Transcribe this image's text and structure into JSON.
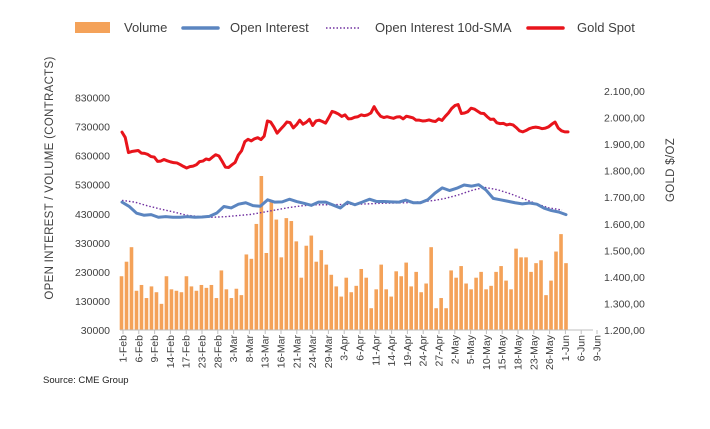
{
  "chart_data": {
    "type": "bar+line",
    "source": "Source: CME Group",
    "legend": [
      {
        "name": "Volume",
        "kind": "bar",
        "color": "#F4A259"
      },
      {
        "name": "Open Interest",
        "kind": "line",
        "color": "#5B85C0"
      },
      {
        "name": "Open Interest 10d-SMA",
        "kind": "dotted",
        "color": "#7030A0"
      },
      {
        "name": "Gold Spot",
        "kind": "line",
        "color": "#E8141B"
      }
    ],
    "ylabel": "OPEN INTEREST / VOLUME (CONTRACTS)",
    "ylabel2": "GOLD $/OZ",
    "ylim": [
      30000,
      880000
    ],
    "ylim2": [
      1200,
      2130
    ],
    "yticks": [
      30000,
      130000,
      230000,
      330000,
      430000,
      530000,
      630000,
      730000,
      830000
    ],
    "ytick_labels": [
      "30000",
      "130000",
      "230000",
      "330000",
      "430000",
      "530000",
      "630000",
      "730000",
      "830000"
    ],
    "y2ticks": [
      1200,
      1300,
      1400,
      1500,
      1600,
      1700,
      1800,
      1900,
      2000,
      2100
    ],
    "y2tick_labels": [
      "1.200,00",
      "1.300,00",
      "1.400,00",
      "1.500,00",
      "1.600,00",
      "1.700,00",
      "1.800,00",
      "1.900,00",
      "2.000,00",
      "2.100,00"
    ],
    "xtick_labels": [
      "1-Feb",
      "6-Feb",
      "9-Feb",
      "14-Feb",
      "17-Feb",
      "23-Feb",
      "28-Feb",
      "3-Mar",
      "8-Mar",
      "13-Mar",
      "16-Mar",
      "21-Mar",
      "24-Mar",
      "29-Mar",
      "3-Apr",
      "6-Apr",
      "11-Apr",
      "14-Apr",
      "19-Apr",
      "24-Apr",
      "27-Apr",
      "2-May",
      "5-May",
      "10-May",
      "15-May",
      "18-May",
      "23-May",
      "26-May",
      "1-Jun",
      "6-Jun",
      "9-Jun"
    ],
    "x_start": "1-Feb",
    "x_end": "9-Jun",
    "n_slots": 128,
    "volume": [
      215000,
      265000,
      315000,
      165000,
      185000,
      140000,
      180000,
      160000,
      120000,
      215000,
      170000,
      165000,
      160000,
      215000,
      180000,
      165000,
      185000,
      175000,
      185000,
      140000,
      235000,
      170000,
      140000,
      172000,
      150000,
      290000,
      275000,
      395000,
      560000,
      295000,
      475000,
      410000,
      280000,
      415000,
      405000,
      335000,
      210000,
      320000,
      355000,
      265000,
      305000,
      255000,
      220000,
      180000,
      145000,
      210000,
      160000,
      182000,
      240000,
      210000,
      105000,
      170000,
      255000,
      170000,
      145000,
      232000,
      215000,
      262000,
      180000,
      230000,
      160000,
      190000,
      315000,
      105000,
      140000,
      105000,
      235000,
      210000,
      250000,
      190000,
      170000,
      210000,
      230000,
      170000,
      182000,
      230000,
      250000,
      200000,
      170000,
      310000,
      280000,
      280000,
      230000,
      260000,
      270000,
      150000,
      200000,
      300000,
      360000,
      260000
    ],
    "open_interest": [
      470000,
      455000,
      432000,
      425000,
      427000,
      418000,
      420000,
      418000,
      418000,
      420000,
      418000,
      419000,
      421000,
      432000,
      455000,
      450000,
      463000,
      468000,
      458000,
      456000,
      478000,
      470000,
      471000,
      480000,
      472000,
      466000,
      459000,
      470000,
      470000,
      460000,
      450000,
      470000,
      461000,
      470000,
      480000,
      472000,
      472000,
      471000,
      470000,
      477000,
      468000,
      468000,
      478000,
      501000,
      519000,
      510000,
      518000,
      529000,
      525000,
      530000,
      512000,
      483000,
      478000,
      473000,
      468000,
      464000,
      467000,
      463000,
      449000,
      441000,
      436000,
      427000
    ],
    "oi_sma": [
      476000,
      470000,
      457000,
      446000,
      436000,
      425000,
      420000,
      418000,
      420000,
      424000,
      428000,
      436000,
      444000,
      452000,
      458000,
      461000,
      461000,
      462000,
      463000,
      464000,
      466000,
      467000,
      468000,
      471000,
      475000,
      483000,
      495000,
      510000,
      521000,
      513000,
      499000,
      482000,
      465000,
      450000,
      443000
    ],
    "gold_spot": [
      1945,
      1925,
      1868,
      1872,
      1874,
      1876,
      1866,
      1865,
      1861,
      1853,
      1851,
      1835,
      1836,
      1842,
      1837,
      1833,
      1830,
      1829,
      1823,
      1816,
      1810,
      1815,
      1817,
      1822,
      1834,
      1836,
      1844,
      1841,
      1851,
      1860,
      1855,
      1835,
      1813,
      1812,
      1822,
      1831,
      1859,
      1875,
      1909,
      1918,
      1912,
      1920,
      1924,
      1917,
      1930,
      1987,
      1983,
      1964,
      1941,
      1955,
      1968,
      1983,
      1981,
      1961,
      1973,
      1990,
      1975,
      1982,
      1993,
      1970,
      1987,
      1990,
      1985,
      1979,
      2000,
      2023,
      2019,
      2013,
      2004,
      2010,
      1995,
      1996,
      2001,
      2003,
      2010,
      2007,
      2010,
      2017,
      2041,
      2020,
      2005,
      2000,
      2003,
      2000,
      1997,
      2002,
      2003,
      1995,
      2005,
      2002,
      1999,
      1990,
      1990,
      1987,
      1988,
      1991,
      1987,
      1985,
      1995,
      1989,
      2004,
      2017,
      2034,
      2045,
      2049,
      2015,
      2017,
      2022,
      2035,
      2032,
      2024,
      2016,
      2015,
      2003,
      1993,
      1994,
      1980,
      1977,
      1978,
      1972,
      1975,
      1972,
      1962,
      1950,
      1946,
      1951,
      1958,
      1962,
      1964,
      1962,
      1958,
      1960,
      1965,
      1975,
      1983,
      1960,
      1950,
      1946,
      1946
    ]
  }
}
